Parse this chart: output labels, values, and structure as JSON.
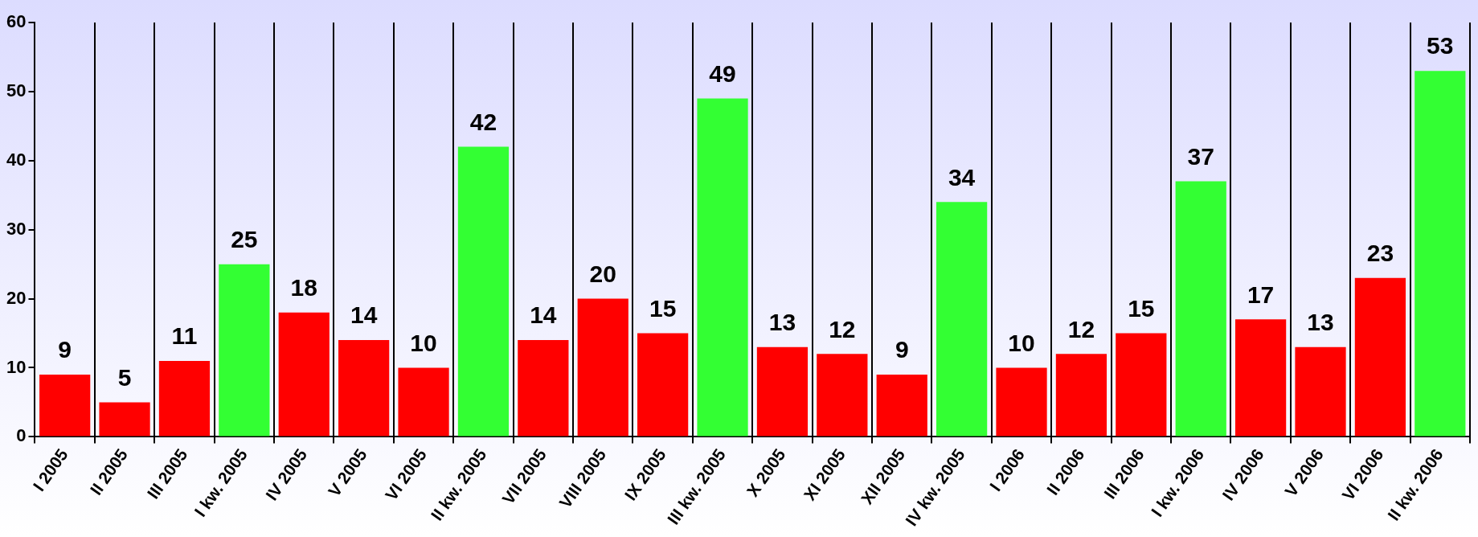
{
  "chart_data": {
    "type": "bar",
    "categories": [
      "I 2005",
      "II 2005",
      "III 2005",
      "I kw. 2005",
      "IV 2005",
      "V 2005",
      "VI 2005",
      "II kw. 2005",
      "VII 2005",
      "VIII 2005",
      "IX 2005",
      "III kw. 2005",
      "X 2005",
      "XI 2005",
      "XII 2005",
      "IV kw. 2005",
      "I 2006",
      "II 2006",
      "III 2006",
      "I kw. 2006",
      "IV 2006",
      "V 2006",
      "VI 2006",
      "II kw. 2006"
    ],
    "values": [
      9,
      5,
      11,
      25,
      18,
      14,
      10,
      42,
      14,
      20,
      15,
      49,
      13,
      12,
      9,
      34,
      10,
      12,
      15,
      37,
      17,
      13,
      23,
      53
    ],
    "colors": [
      "#ff0000",
      "#ff0000",
      "#ff0000",
      "#33ff33",
      "#ff0000",
      "#ff0000",
      "#ff0000",
      "#33ff33",
      "#ff0000",
      "#ff0000",
      "#ff0000",
      "#33ff33",
      "#ff0000",
      "#ff0000",
      "#ff0000",
      "#33ff33",
      "#ff0000",
      "#ff0000",
      "#ff0000",
      "#33ff33",
      "#ff0000",
      "#ff0000",
      "#ff0000",
      "#33ff33"
    ],
    "ylim": [
      0,
      60
    ],
    "yticks": [
      0,
      10,
      20,
      30,
      40,
      50,
      60
    ],
    "grid": "x",
    "data_labels": true
  }
}
